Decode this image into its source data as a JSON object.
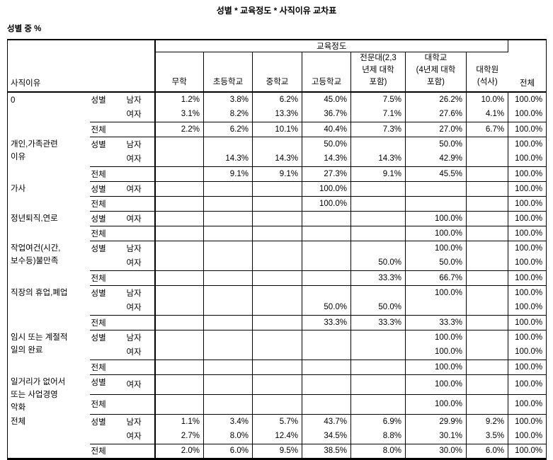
{
  "title": "성별 * 교육정도 * 사직이유 교차표",
  "caption": "성별 중 %",
  "table": {
    "stub_header": "사직이유",
    "spanner": "교육정도",
    "total_col_header": "전체",
    "columns": {
      "0": "무학",
      "1": "초등학교",
      "2": "중학교",
      "3": "고등학교",
      "4": "전문대(2,3\n년제 대학\n포함)",
      "5": "대학교\n(4년제 대학\n포함)",
      "6": "대학원\n(석사)"
    },
    "row_labels": {
      "gender": "성별",
      "total": "전체",
      "male": "남자",
      "female": "여자"
    },
    "groups": [
      {
        "label": "0",
        "sexes": [
          {
            "name": "남자",
            "values": [
              "1.2%",
              "3.8%",
              "6.2%",
              "45.0%",
              "7.5%",
              "26.2%",
              "10.0%",
              "100.0%"
            ]
          },
          {
            "name": "여자",
            "values": [
              "3.1%",
              "8.2%",
              "13.3%",
              "36.7%",
              "7.1%",
              "27.6%",
              "4.1%",
              "100.0%"
            ]
          }
        ],
        "total": [
          "2.2%",
          "6.2%",
          "10.1%",
          "40.4%",
          "7.3%",
          "27.0%",
          "6.7%",
          "100.0%"
        ]
      },
      {
        "label": "개인,가족관련\n이유",
        "sexes": [
          {
            "name": "남자",
            "values": [
              "",
              "",
              "",
              "50.0%",
              "",
              "50.0%",
              "",
              "100.0%"
            ]
          },
          {
            "name": "여자",
            "values": [
              "",
              "14.3%",
              "14.3%",
              "14.3%",
              "14.3%",
              "42.9%",
              "",
              "100.0%"
            ]
          }
        ],
        "total": [
          "",
          "9.1%",
          "9.1%",
          "27.3%",
          "9.1%",
          "45.5%",
          "",
          "100.0%"
        ]
      },
      {
        "label": "가사",
        "sexes": [
          {
            "name": "여자",
            "values": [
              "",
              "",
              "",
              "100.0%",
              "",
              "",
              "",
              "100.0%"
            ]
          }
        ],
        "total": [
          "",
          "",
          "",
          "100.0%",
          "",
          "",
          "",
          "100.0%"
        ]
      },
      {
        "label": "정년퇴직,연로",
        "sexes": [
          {
            "name": "여자",
            "values": [
              "",
              "",
              "",
              "",
              "",
              "100.0%",
              "",
              "100.0%"
            ]
          }
        ],
        "total": [
          "",
          "",
          "",
          "",
          "",
          "100.0%",
          "",
          "100.0%"
        ]
      },
      {
        "label": "작업여건(시간,\n보수등)불만족",
        "sexes": [
          {
            "name": "남자",
            "values": [
              "",
              "",
              "",
              "",
              "",
              "100.0%",
              "",
              "100.0%"
            ]
          },
          {
            "name": "여자",
            "values": [
              "",
              "",
              "",
              "",
              "50.0%",
              "50.0%",
              "",
              "100.0%"
            ]
          }
        ],
        "total": [
          "",
          "",
          "",
          "",
          "33.3%",
          "66.7%",
          "",
          "100.0%"
        ]
      },
      {
        "label": "직장의 휴업,폐업",
        "sexes": [
          {
            "name": "남자",
            "values": [
              "",
              "",
              "",
              "",
              "",
              "100.0%",
              "",
              "100.0%"
            ]
          },
          {
            "name": "여자",
            "values": [
              "",
              "",
              "",
              "50.0%",
              "50.0%",
              "",
              "",
              "100.0%"
            ]
          }
        ],
        "total": [
          "",
          "",
          "",
          "33.3%",
          "33.3%",
          "33.3%",
          "",
          "100.0%"
        ]
      },
      {
        "label": "임시 또는 계절적\n일의 완료",
        "sexes": [
          {
            "name": "남자",
            "values": [
              "",
              "",
              "",
              "",
              "",
              "100.0%",
              "",
              "100.0%"
            ]
          },
          {
            "name": "여자",
            "values": [
              "",
              "",
              "",
              "",
              "",
              "100.0%",
              "",
              "100.0%"
            ]
          }
        ],
        "total": [
          "",
          "",
          "",
          "",
          "",
          "100.0%",
          "",
          "100.0%"
        ]
      },
      {
        "label": "일거리가 없어서\n또는 사업경영\n악화",
        "sexes": [
          {
            "name": "여자",
            "values": [
              "",
              "",
              "",
              "",
              "",
              "100.0%",
              "",
              "100.0%"
            ]
          }
        ],
        "total": [
          "",
          "",
          "",
          "",
          "",
          "100.0%",
          "",
          "100.0%"
        ]
      },
      {
        "label": "전체",
        "sexes": [
          {
            "name": "남자",
            "values": [
              "1.1%",
              "3.4%",
              "5.7%",
              "43.7%",
              "6.9%",
              "29.9%",
              "9.2%",
              "100.0%"
            ]
          },
          {
            "name": "여자",
            "values": [
              "2.7%",
              "8.0%",
              "12.4%",
              "34.5%",
              "8.8%",
              "30.1%",
              "3.5%",
              "100.0%"
            ]
          }
        ],
        "total": [
          "2.0%",
          "6.0%",
          "9.5%",
          "38.5%",
          "8.0%",
          "30.0%",
          "6.0%",
          "100.0%"
        ]
      }
    ]
  }
}
